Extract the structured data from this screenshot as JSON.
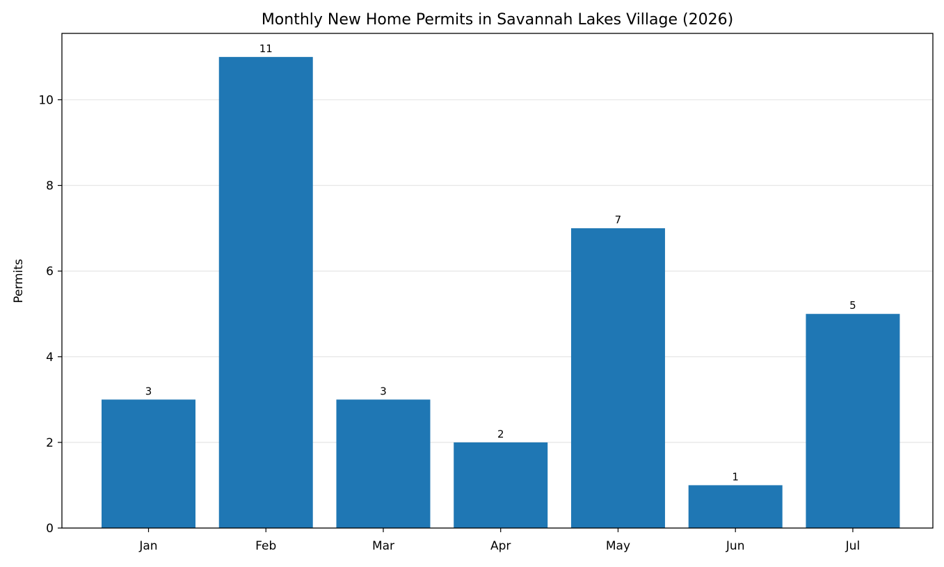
{
  "chart_data": {
    "type": "bar",
    "title": "Monthly New Home Permits in Savannah Lakes Village (2026)",
    "xlabel": "",
    "ylabel": "Permits",
    "categories": [
      "Jan",
      "Feb",
      "Mar",
      "Apr",
      "May",
      "Jun",
      "Jul"
    ],
    "values": [
      3,
      11,
      3,
      2,
      7,
      1,
      5
    ],
    "data_labels": [
      "3",
      "11",
      "3",
      "2",
      "7",
      "1",
      "5"
    ],
    "ylim": [
      0,
      11.55
    ],
    "yticks": [
      0,
      2,
      4,
      6,
      8,
      10
    ],
    "ytick_labels": [
      "0",
      "2",
      "4",
      "6",
      "8",
      "10"
    ],
    "grid": "horizontal",
    "legend": "none",
    "colors": {
      "bar": "#1f77b4",
      "grid": "#e6e6e6",
      "axis": "#000000"
    }
  }
}
